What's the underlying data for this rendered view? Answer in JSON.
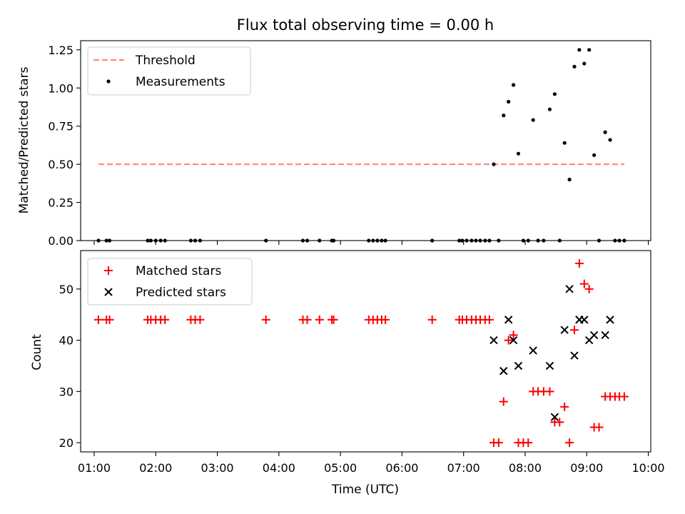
{
  "chart_data": [
    {
      "type": "scatter",
      "title": "Flux total observing time = 0.00 h",
      "xlabel": "",
      "ylabel": "Matched/Predicted stars",
      "xlim": [
        0.78,
        10.04
      ],
      "ylim": [
        0,
        1.31
      ],
      "yticks": [
        0,
        0.25,
        0.5,
        0.75,
        1.0,
        1.25
      ],
      "ytick_labels": [
        "0.00",
        "0.25",
        "0.50",
        "0.75",
        "1.00",
        "1.25"
      ],
      "legend": {
        "position": "top-left",
        "entries": [
          "Threshold",
          "Measurements"
        ]
      },
      "threshold": {
        "name": "Threshold",
        "color": "#ff7f7f",
        "y": 0.5,
        "x": [
          1.07,
          9.61
        ]
      },
      "series": [
        {
          "name": "Measurements",
          "color": "#000000",
          "points": [
            [
              1.07,
              0
            ],
            [
              1.2,
              0
            ],
            [
              1.25,
              0
            ],
            [
              1.87,
              0
            ],
            [
              1.92,
              0
            ],
            [
              2.0,
              0
            ],
            [
              2.08,
              0
            ],
            [
              2.15,
              0
            ],
            [
              2.57,
              0
            ],
            [
              2.64,
              0
            ],
            [
              2.72,
              0
            ],
            [
              3.79,
              0
            ],
            [
              4.39,
              0
            ],
            [
              4.46,
              0
            ],
            [
              4.66,
              0
            ],
            [
              4.86,
              0
            ],
            [
              4.89,
              0
            ],
            [
              5.46,
              0
            ],
            [
              5.53,
              0
            ],
            [
              5.6,
              0
            ],
            [
              5.67,
              0
            ],
            [
              5.73,
              0
            ],
            [
              6.49,
              0
            ],
            [
              6.93,
              0
            ],
            [
              6.98,
              0
            ],
            [
              7.05,
              0
            ],
            [
              7.13,
              0
            ],
            [
              7.2,
              0
            ],
            [
              7.27,
              0
            ],
            [
              7.35,
              0
            ],
            [
              7.42,
              0
            ],
            [
              7.49,
              0.5
            ],
            [
              7.57,
              0
            ],
            [
              7.65,
              0.82
            ],
            [
              7.73,
              0.91
            ],
            [
              7.81,
              1.02
            ],
            [
              7.89,
              0.57
            ],
            [
              7.97,
              0
            ],
            [
              8.05,
              0
            ],
            [
              8.13,
              0.79
            ],
            [
              8.21,
              0
            ],
            [
              8.3,
              0
            ],
            [
              8.4,
              0.86
            ],
            [
              8.48,
              0.96
            ],
            [
              8.56,
              0
            ],
            [
              8.64,
              0.64
            ],
            [
              8.72,
              0.4
            ],
            [
              8.8,
              1.14
            ],
            [
              8.88,
              1.25
            ],
            [
              8.96,
              1.16
            ],
            [
              9.04,
              1.25
            ],
            [
              9.12,
              0.56
            ],
            [
              9.2,
              0
            ],
            [
              9.3,
              0.71
            ],
            [
              9.38,
              0.66
            ],
            [
              9.46,
              0
            ],
            [
              9.53,
              0
            ],
            [
              9.61,
              0
            ]
          ]
        }
      ]
    },
    {
      "type": "scatter",
      "title": "",
      "xlabel": "Time (UTC)",
      "ylabel": "Count",
      "xlim": [
        0.78,
        10.04
      ],
      "ylim": [
        18.2,
        57.5
      ],
      "xticks": [
        1,
        2,
        3,
        4,
        5,
        6,
        7,
        8,
        9,
        10
      ],
      "xtick_labels": [
        "01:00",
        "02:00",
        "03:00",
        "04:00",
        "05:00",
        "06:00",
        "07:00",
        "08:00",
        "09:00",
        "10:00"
      ],
      "yticks": [
        20,
        30,
        40,
        50
      ],
      "ytick_labels": [
        "20",
        "30",
        "40",
        "50"
      ],
      "legend": {
        "position": "top-left",
        "entries": [
          "Matched stars",
          "Predicted stars"
        ]
      },
      "series": [
        {
          "name": "Matched stars",
          "marker": "+",
          "color": "#ff0000",
          "points": [
            [
              1.07,
              44
            ],
            [
              1.2,
              44
            ],
            [
              1.25,
              44
            ],
            [
              1.87,
              44
            ],
            [
              1.92,
              44
            ],
            [
              2.0,
              44
            ],
            [
              2.08,
              44
            ],
            [
              2.15,
              44
            ],
            [
              2.57,
              44
            ],
            [
              2.64,
              44
            ],
            [
              2.72,
              44
            ],
            [
              3.79,
              44
            ],
            [
              4.39,
              44
            ],
            [
              4.46,
              44
            ],
            [
              4.66,
              44
            ],
            [
              4.86,
              44
            ],
            [
              4.89,
              44
            ],
            [
              5.46,
              44
            ],
            [
              5.53,
              44
            ],
            [
              5.6,
              44
            ],
            [
              5.67,
              44
            ],
            [
              5.73,
              44
            ],
            [
              6.49,
              44
            ],
            [
              6.93,
              44
            ],
            [
              6.98,
              44
            ],
            [
              7.05,
              44
            ],
            [
              7.13,
              44
            ],
            [
              7.2,
              44
            ],
            [
              7.27,
              44
            ],
            [
              7.35,
              44
            ],
            [
              7.42,
              44
            ],
            [
              7.49,
              20
            ],
            [
              7.57,
              20
            ],
            [
              7.65,
              28
            ],
            [
              7.73,
              40
            ],
            [
              7.81,
              41
            ],
            [
              7.89,
              20
            ],
            [
              7.97,
              20
            ],
            [
              8.05,
              20
            ],
            [
              8.13,
              30
            ],
            [
              8.21,
              30
            ],
            [
              8.3,
              30
            ],
            [
              8.4,
              30
            ],
            [
              8.48,
              24
            ],
            [
              8.56,
              24
            ],
            [
              8.64,
              27
            ],
            [
              8.72,
              20
            ],
            [
              8.8,
              42
            ],
            [
              8.88,
              55
            ],
            [
              8.96,
              51
            ],
            [
              9.04,
              50
            ],
            [
              9.12,
              23
            ],
            [
              9.2,
              23
            ],
            [
              9.3,
              29
            ],
            [
              9.38,
              29
            ],
            [
              9.46,
              29
            ],
            [
              9.53,
              29
            ],
            [
              9.61,
              29
            ]
          ]
        },
        {
          "name": "Predicted stars",
          "marker": "x",
          "color": "#000000",
          "points": [
            [
              7.49,
              40
            ],
            [
              7.65,
              34
            ],
            [
              7.73,
              44
            ],
            [
              7.81,
              40
            ],
            [
              7.89,
              35
            ],
            [
              8.13,
              38
            ],
            [
              8.4,
              35
            ],
            [
              8.48,
              25
            ],
            [
              8.64,
              42
            ],
            [
              8.72,
              50
            ],
            [
              8.8,
              37
            ],
            [
              8.88,
              44
            ],
            [
              8.96,
              44
            ],
            [
              9.04,
              40
            ],
            [
              9.12,
              41
            ],
            [
              9.3,
              41
            ],
            [
              9.38,
              44
            ]
          ]
        }
      ]
    }
  ]
}
